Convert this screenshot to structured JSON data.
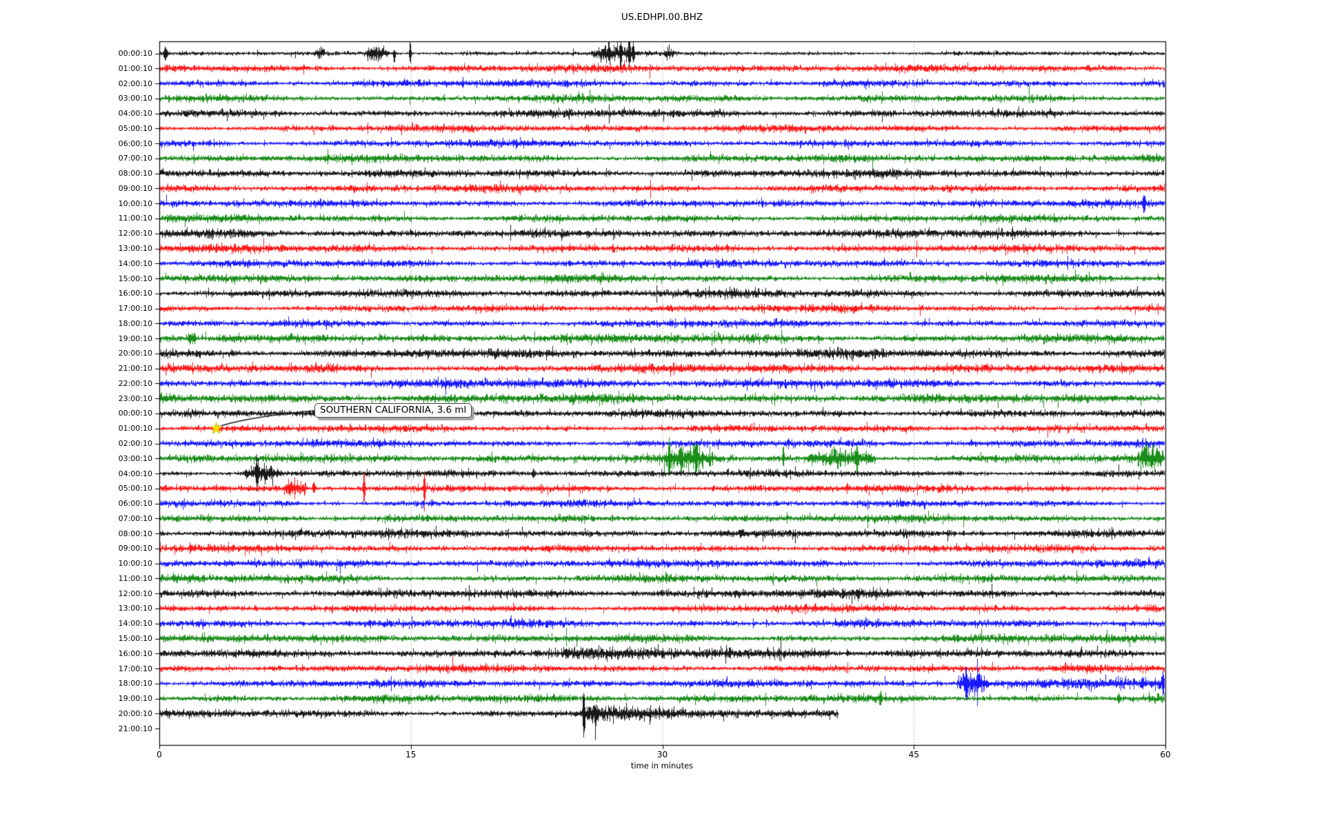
{
  "figure": {
    "title": "US.EDHPI.00.BHZ",
    "xlabel": "time in minutes"
  },
  "chart_data": {
    "type": "line",
    "subtype": "seismogram-helicorder-dayplot",
    "title": "US.EDHPI.00.BHZ",
    "xlabel": "time in minutes",
    "x_range": [
      0,
      60
    ],
    "x_ticks": [
      0,
      15,
      30,
      45,
      60
    ],
    "grid": {
      "vertical_gridlines_minutes": [
        15,
        30,
        45
      ],
      "style": "dotted",
      "color": "#9a9a9a"
    },
    "legend": "none",
    "trace_color_cycle": [
      "#000000",
      "#ff0000",
      "#0000ff",
      "#008000"
    ],
    "rows": [
      {
        "label": "00:00:10",
        "amp": 1.4
      },
      {
        "label": "01:00:10",
        "amp": 2.4
      },
      {
        "label": "02:00:10",
        "amp": 2.2
      },
      {
        "label": "03:00:10",
        "amp": 2.3
      },
      {
        "label": "04:00:10",
        "amp": 2.4
      },
      {
        "label": "05:00:10",
        "amp": 2.3
      },
      {
        "label": "06:00:10",
        "amp": 2.2
      },
      {
        "label": "07:00:10",
        "amp": 2.4
      },
      {
        "label": "08:00:10",
        "amp": 2.5
      },
      {
        "label": "09:00:10",
        "amp": 2.4
      },
      {
        "label": "10:00:10",
        "amp": 2.2
      },
      {
        "label": "11:00:10",
        "amp": 2.3
      },
      {
        "label": "12:00:10",
        "amp": 2.6
      },
      {
        "label": "13:00:10",
        "amp": 2.4
      },
      {
        "label": "14:00:10",
        "amp": 2.3
      },
      {
        "label": "15:00:10",
        "amp": 2.5
      },
      {
        "label": "16:00:10",
        "amp": 2.6
      },
      {
        "label": "17:00:10",
        "amp": 2.3
      },
      {
        "label": "18:00:10",
        "amp": 2.2
      },
      {
        "label": "19:00:10",
        "amp": 2.7
      },
      {
        "label": "20:00:10",
        "amp": 2.9
      },
      {
        "label": "21:00:10",
        "amp": 2.7
      },
      {
        "label": "22:00:10",
        "amp": 2.8
      },
      {
        "label": "23:00:10",
        "amp": 2.9
      },
      {
        "label": "00:00:10",
        "amp": 2.3
      },
      {
        "label": "01:00:10",
        "amp": 2.2
      },
      {
        "label": "02:00:10",
        "amp": 2.3
      },
      {
        "label": "03:00:10",
        "amp": 2.5
      },
      {
        "label": "04:00:10",
        "amp": 2.2
      },
      {
        "label": "05:00:10",
        "amp": 2.3
      },
      {
        "label": "06:00:10",
        "amp": 2.2
      },
      {
        "label": "07:00:10",
        "amp": 2.4
      },
      {
        "label": "08:00:10",
        "amp": 2.5
      },
      {
        "label": "09:00:10",
        "amp": 2.3
      },
      {
        "label": "10:00:10",
        "amp": 2.4
      },
      {
        "label": "11:00:10",
        "amp": 2.4
      },
      {
        "label": "12:00:10",
        "amp": 2.7
      },
      {
        "label": "13:00:10",
        "amp": 2.3
      },
      {
        "label": "14:00:10",
        "amp": 2.4
      },
      {
        "label": "15:00:10",
        "amp": 2.5
      },
      {
        "label": "16:00:10",
        "amp": 2.6
      },
      {
        "label": "17:00:10",
        "amp": 2.3
      },
      {
        "label": "18:00:10",
        "amp": 2.4
      },
      {
        "label": "19:00:10",
        "amp": 2.5
      },
      {
        "label": "20:00:10",
        "amp": 2.2,
        "end_minute": 40.5
      },
      {
        "label": "21:00:10",
        "amp": 0,
        "empty": true
      }
    ],
    "events": [
      {
        "row": 0,
        "type": "spike",
        "t": 0.35,
        "amp": 10,
        "w": 0.1
      },
      {
        "row": 0,
        "type": "burst",
        "t0": 9.2,
        "t1": 9.9,
        "amp": 4
      },
      {
        "row": 0,
        "type": "burst",
        "t0": 12.2,
        "t1": 13.7,
        "amp": 4.5
      },
      {
        "row": 0,
        "type": "spike",
        "t": 14.0,
        "amp": 13,
        "w": 0.06,
        "dir": "down"
      },
      {
        "row": 0,
        "type": "spike",
        "t": 14.95,
        "amp": 19,
        "w": 0.05
      },
      {
        "row": 0,
        "type": "burst",
        "t0": 25.7,
        "t1": 28.5,
        "amp": 5
      },
      {
        "row": 0,
        "type": "spike",
        "t": 26.8,
        "amp": 10,
        "w": 0.07
      },
      {
        "row": 0,
        "type": "spike",
        "t": 27.5,
        "amp": 20,
        "w": 0.05
      },
      {
        "row": 0,
        "type": "spike",
        "t": 28.0,
        "amp": 22,
        "w": 0.05
      },
      {
        "row": 0,
        "type": "spike",
        "t": 28.25,
        "amp": 14,
        "w": 0.05
      },
      {
        "row": 0,
        "type": "burst",
        "t0": 30.1,
        "t1": 30.7,
        "amp": 3.5
      },
      {
        "row": 10,
        "type": "spike",
        "t": 58.7,
        "amp": 12,
        "w": 0.07
      },
      {
        "row": 19,
        "type": "burst",
        "t0": 1.7,
        "t1": 2.2,
        "amp": 4.5
      },
      {
        "row": 23,
        "type": "spike",
        "t": 49.0,
        "amp": 4,
        "w": 0.06
      },
      {
        "row": 27,
        "type": "burst",
        "t0": 30.0,
        "t1": 33.2,
        "amp": 6
      },
      {
        "row": 27,
        "type": "spike",
        "t": 30.4,
        "amp": 23,
        "w": 0.06
      },
      {
        "row": 27,
        "type": "spike",
        "t": 31.1,
        "amp": 13,
        "w": 0.06
      },
      {
        "row": 27,
        "type": "spike",
        "t": 32.0,
        "amp": 14,
        "w": 0.06
      },
      {
        "row": 27,
        "type": "spike",
        "t": 37.2,
        "amp": 15,
        "w": 0.05
      },
      {
        "row": 27,
        "type": "burst",
        "t0": 38.5,
        "t1": 42.8,
        "amp": 5
      },
      {
        "row": 27,
        "type": "spike",
        "t": 41.6,
        "amp": 20,
        "w": 0.06
      },
      {
        "row": 27,
        "type": "burst",
        "t0": 58.3,
        "t1": 59.9,
        "amp": 8
      },
      {
        "row": 28,
        "type": "burst",
        "t0": 4.9,
        "t1": 7.3,
        "amp": 5.5
      },
      {
        "row": 28,
        "type": "spike",
        "t": 5.8,
        "amp": 18,
        "w": 0.07
      },
      {
        "row": 28,
        "type": "spike",
        "t": 22.3,
        "amp": 5,
        "w": 0.07
      },
      {
        "row": 29,
        "type": "burst",
        "t0": 7.3,
        "t1": 8.8,
        "amp": 5.5
      },
      {
        "row": 29,
        "type": "spike",
        "t": 9.2,
        "amp": 7,
        "w": 0.06
      },
      {
        "row": 29,
        "type": "spike",
        "t": 12.2,
        "amp": 25,
        "w": 0.05
      },
      {
        "row": 29,
        "type": "spike",
        "t": 15.8,
        "amp": 26,
        "w": 0.05
      },
      {
        "row": 40,
        "type": "elev",
        "t0": 24.0,
        "t1": 40.0,
        "amp": 1.2
      },
      {
        "row": 41,
        "type": "burst",
        "t0": 52.0,
        "t1": 57.0,
        "amp": 1.5
      },
      {
        "row": 42,
        "type": "burst",
        "t0": 47.5,
        "t1": 49.5,
        "amp": 8
      },
      {
        "row": 42,
        "type": "spike",
        "t": 48.1,
        "amp": 19,
        "w": 0.07
      },
      {
        "row": 42,
        "type": "elev",
        "t0": 49.5,
        "t1": 60.0,
        "amp": 1.2
      },
      {
        "row": 42,
        "type": "spike",
        "t": 58.6,
        "amp": 6,
        "w": 0.07
      },
      {
        "row": 42,
        "type": "spike",
        "t": 59.85,
        "amp": 13,
        "w": 0.06
      },
      {
        "row": 43,
        "type": "spike",
        "t": 43.0,
        "amp": 7,
        "w": 0.06
      },
      {
        "row": 43,
        "type": "spike",
        "t": 57.2,
        "amp": 7,
        "w": 0.06
      },
      {
        "row": 44,
        "type": "spike",
        "t": 25.3,
        "amp": 24,
        "w": 0.06
      },
      {
        "row": 44,
        "type": "spike",
        "t": 26.0,
        "amp": 30,
        "w": 0.05,
        "dir": "down"
      },
      {
        "row": 44,
        "type": "coda",
        "t0": 25.2,
        "t1": 40.5,
        "amp": 6
      }
    ],
    "annotation": {
      "text": "SOUTHERN CALIFORNIA, 3.6 ml",
      "marker": "star",
      "marker_color": "#ffe100",
      "marker_row_index": 25,
      "marker_minute": 3.4,
      "arrow_color": "#1a1a1a"
    }
  }
}
